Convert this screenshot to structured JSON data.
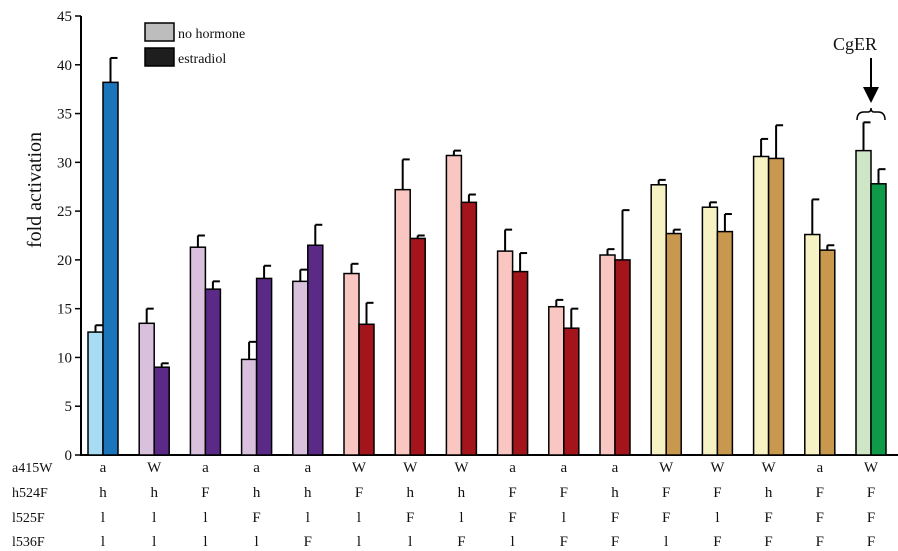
{
  "chart_data": {
    "type": "bar",
    "ylabel": "fold activation",
    "ylim": [
      0,
      45
    ],
    "yticks": [
      0,
      5,
      10,
      15,
      20,
      25,
      30,
      35,
      40,
      45
    ],
    "legend": {
      "placement": "top-left",
      "entries": [
        {
          "label": "no hormone",
          "color": "#bdbdbd"
        },
        {
          "label": "estradiol",
          "color": "#1e1e1e"
        }
      ]
    },
    "annotation": {
      "text": "CgER",
      "group_index": 15
    },
    "row_labels": [
      "a415W",
      "h524F",
      "l525F",
      "l536F"
    ],
    "groups": [
      {
        "codes": [
          "a",
          "h",
          "l",
          "l"
        ],
        "no_hormone": 12.6,
        "no_hormone_err": 0.7,
        "estradiol": 38.2,
        "estradiol_err": 2.5,
        "light_color": "#a7dcf4",
        "dark_color": "#1b75bb"
      },
      {
        "codes": [
          "W",
          "h",
          "l",
          "l"
        ],
        "no_hormone": 13.5,
        "no_hormone_err": 1.5,
        "estradiol": 9.0,
        "estradiol_err": 0.4,
        "light_color": "#d9c1de",
        "dark_color": "#5b2a86"
      },
      {
        "codes": [
          "a",
          "F",
          "l",
          "l"
        ],
        "no_hormone": 21.3,
        "no_hormone_err": 1.2,
        "estradiol": 17.0,
        "estradiol_err": 0.8,
        "light_color": "#d9c1de",
        "dark_color": "#5b2a86"
      },
      {
        "codes": [
          "a",
          "h",
          "F",
          "l"
        ],
        "no_hormone": 9.8,
        "no_hormone_err": 1.8,
        "estradiol": 18.1,
        "estradiol_err": 1.3,
        "light_color": "#d9c1de",
        "dark_color": "#5b2a86"
      },
      {
        "codes": [
          "a",
          "h",
          "l",
          "F"
        ],
        "no_hormone": 17.8,
        "no_hormone_err": 1.2,
        "estradiol": 21.5,
        "estradiol_err": 2.1,
        "light_color": "#d9c1de",
        "dark_color": "#5b2a86"
      },
      {
        "codes": [
          "W",
          "F",
          "l",
          "l"
        ],
        "no_hormone": 18.6,
        "no_hormone_err": 1.0,
        "estradiol": 13.4,
        "estradiol_err": 2.2,
        "light_color": "#f9c6c1",
        "dark_color": "#a3141b"
      },
      {
        "codes": [
          "W",
          "h",
          "F",
          "l"
        ],
        "no_hormone": 27.2,
        "no_hormone_err": 3.1,
        "estradiol": 22.2,
        "estradiol_err": 0.3,
        "light_color": "#f9c6c1",
        "dark_color": "#a3141b"
      },
      {
        "codes": [
          "W",
          "h",
          "l",
          "F"
        ],
        "no_hormone": 30.7,
        "no_hormone_err": 0.5,
        "estradiol": 25.9,
        "estradiol_err": 0.8,
        "light_color": "#f9c6c1",
        "dark_color": "#a3141b"
      },
      {
        "codes": [
          "a",
          "F",
          "F",
          "l"
        ],
        "no_hormone": 20.9,
        "no_hormone_err": 2.2,
        "estradiol": 18.8,
        "estradiol_err": 1.9,
        "light_color": "#f9c6c1",
        "dark_color": "#a3141b"
      },
      {
        "codes": [
          "a",
          "F",
          "l",
          "F"
        ],
        "no_hormone": 15.2,
        "no_hormone_err": 0.7,
        "estradiol": 13.0,
        "estradiol_err": 2.0,
        "light_color": "#f9c6c1",
        "dark_color": "#a3141b"
      },
      {
        "codes": [
          "a",
          "h",
          "F",
          "F"
        ],
        "no_hormone": 20.5,
        "no_hormone_err": 0.6,
        "estradiol": 20.0,
        "estradiol_err": 5.1,
        "light_color": "#f9c6c1",
        "dark_color": "#a3141b"
      },
      {
        "codes": [
          "W",
          "F",
          "F",
          "l"
        ],
        "no_hormone": 27.7,
        "no_hormone_err": 0.5,
        "estradiol": 22.7,
        "estradiol_err": 0.4,
        "light_color": "#f7f2c4",
        "dark_color": "#c9984f"
      },
      {
        "codes": [
          "W",
          "F",
          "l",
          "F"
        ],
        "no_hormone": 25.4,
        "no_hormone_err": 0.5,
        "estradiol": 22.9,
        "estradiol_err": 1.8,
        "light_color": "#f7f2c4",
        "dark_color": "#c9984f"
      },
      {
        "codes": [
          "W",
          "h",
          "F",
          "F"
        ],
        "no_hormone": 30.6,
        "no_hormone_err": 1.8,
        "estradiol": 30.4,
        "estradiol_err": 3.4,
        "light_color": "#f7f2c4",
        "dark_color": "#c9984f"
      },
      {
        "codes": [
          "a",
          "F",
          "F",
          "F"
        ],
        "no_hormone": 22.6,
        "no_hormone_err": 3.6,
        "estradiol": 21.0,
        "estradiol_err": 0.5,
        "light_color": "#f7f2c4",
        "dark_color": "#c9984f"
      },
      {
        "codes": [
          "W",
          "F",
          "F",
          "F"
        ],
        "no_hormone": 31.2,
        "no_hormone_err": 2.9,
        "estradiol": 27.8,
        "estradiol_err": 1.5,
        "light_color": "#cfe6c6",
        "dark_color": "#0f9a49"
      }
    ]
  }
}
